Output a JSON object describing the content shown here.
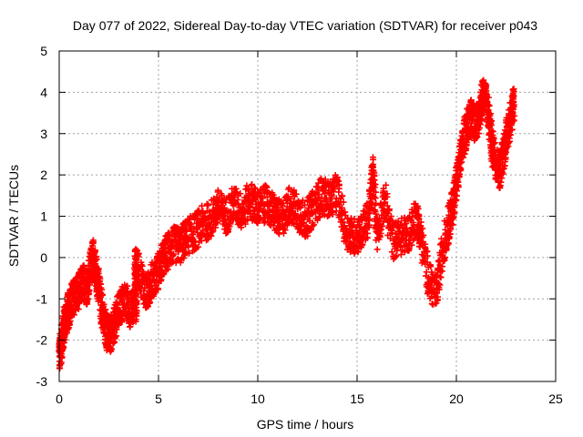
{
  "chart_data": {
    "type": "scatter",
    "title": "Day 077 of 2022, Sidereal Day-to-day VTEC variation (SDTVAR) for receiver p043",
    "xlabel": "GPS time / hours",
    "ylabel": "SDTVAR / TECUs",
    "xlim": [
      0,
      25
    ],
    "ylim": [
      -3,
      5
    ],
    "xticks": [
      "0",
      "5",
      "10",
      "15",
      "20",
      "25"
    ],
    "yticks": [
      "-3",
      "-2",
      "-1",
      "0",
      "1",
      "2",
      "3",
      "4",
      "5"
    ],
    "grid": true,
    "marker": "+",
    "color": "#ff0000",
    "series": [
      {
        "name": "SDTVAR",
        "points": [
          [
            0.0,
            -2.4
          ],
          [
            0.1,
            -2.1
          ],
          [
            0.2,
            -1.8
          ],
          [
            0.3,
            -1.5
          ],
          [
            0.45,
            -1.3
          ],
          [
            0.6,
            -1.1
          ],
          [
            0.8,
            -0.9
          ],
          [
            1.0,
            -0.8
          ],
          [
            1.2,
            -0.6
          ],
          [
            1.4,
            -0.7
          ],
          [
            1.6,
            -0.2
          ],
          [
            1.7,
            0.0
          ],
          [
            1.85,
            -0.3
          ],
          [
            2.0,
            -0.8
          ],
          [
            2.2,
            -1.4
          ],
          [
            2.4,
            -1.8
          ],
          [
            2.6,
            -1.9
          ],
          [
            2.8,
            -1.6
          ],
          [
            3.0,
            -1.3
          ],
          [
            3.3,
            -1.0
          ],
          [
            3.6,
            -1.3
          ],
          [
            3.9,
            -1.1
          ],
          [
            3.8,
            -0.2
          ],
          [
            4.0,
            -0.3
          ],
          [
            4.4,
            -0.9
          ],
          [
            4.6,
            -0.6
          ],
          [
            4.9,
            -0.4
          ],
          [
            5.2,
            -0.1
          ],
          [
            5.5,
            0.2
          ],
          [
            5.8,
            0.3
          ],
          [
            6.1,
            0.3
          ],
          [
            6.4,
            0.5
          ],
          [
            6.8,
            0.6
          ],
          [
            7.2,
            0.8
          ],
          [
            7.6,
            0.9
          ],
          [
            8.0,
            1.2
          ],
          [
            8.4,
            1.0
          ],
          [
            8.8,
            1.3
          ],
          [
            9.2,
            1.1
          ],
          [
            9.6,
            1.4
          ],
          [
            10.0,
            1.2
          ],
          [
            10.4,
            1.3
          ],
          [
            10.8,
            1.1
          ],
          [
            11.2,
            0.9
          ],
          [
            11.6,
            1.3
          ],
          [
            12.0,
            1.1
          ],
          [
            12.4,
            0.9
          ],
          [
            12.8,
            1.2
          ],
          [
            13.2,
            1.5
          ],
          [
            13.6,
            1.4
          ],
          [
            14.0,
            1.6
          ],
          [
            14.4,
            0.7
          ],
          [
            14.8,
            0.5
          ],
          [
            15.2,
            0.6
          ],
          [
            15.6,
            1.0
          ],
          [
            15.8,
            2.1
          ],
          [
            16.0,
            0.6
          ],
          [
            16.4,
            1.4
          ],
          [
            16.8,
            0.4
          ],
          [
            17.2,
            0.5
          ],
          [
            17.6,
            0.6
          ],
          [
            18.0,
            1.0
          ],
          [
            18.2,
            0.5
          ],
          [
            18.6,
            -0.5
          ],
          [
            19.0,
            -0.9
          ],
          [
            19.3,
            0.2
          ],
          [
            19.6,
            0.8
          ],
          [
            19.8,
            1.2
          ],
          [
            20.0,
            1.8
          ],
          [
            20.2,
            2.4
          ],
          [
            20.4,
            2.9
          ],
          [
            20.6,
            3.3
          ],
          [
            20.8,
            3.4
          ],
          [
            21.0,
            3.2
          ],
          [
            21.2,
            3.6
          ],
          [
            21.4,
            4.0
          ],
          [
            21.6,
            3.5
          ],
          [
            21.8,
            2.7
          ],
          [
            22.0,
            2.3
          ],
          [
            22.2,
            2.1
          ],
          [
            22.4,
            2.6
          ],
          [
            22.6,
            3.1
          ],
          [
            22.8,
            3.5
          ],
          [
            22.9,
            3.7
          ]
        ],
        "noise": 0.45
      }
    ]
  }
}
